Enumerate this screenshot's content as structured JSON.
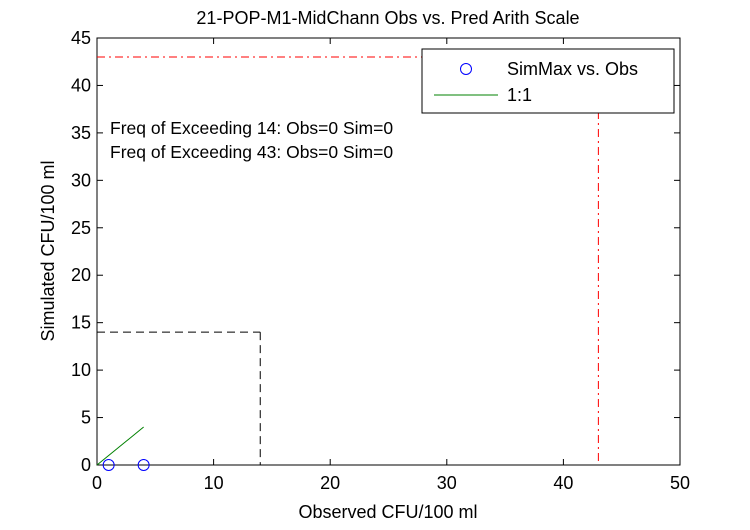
{
  "chart_data": {
    "type": "scatter",
    "title": "21-POP-M1-MidChann Obs vs. Pred Arith Scale",
    "xlabel": "Observed CFU/100 ml",
    "ylabel": "Simulated CFU/100 ml",
    "xlim": [
      0,
      50
    ],
    "ylim": [
      0,
      45
    ],
    "xticks": [
      0,
      10,
      20,
      30,
      40,
      50
    ],
    "yticks": [
      0,
      5,
      10,
      15,
      20,
      25,
      30,
      35,
      40,
      45
    ],
    "grid": false,
    "legend_position": "top-right",
    "series": [
      {
        "name": "SimMax vs. Obs",
        "kind": "marker",
        "marker": "circle",
        "color": "#0000ff",
        "x": [
          1,
          4
        ],
        "y": [
          0,
          0
        ]
      },
      {
        "name": "1:1",
        "kind": "line",
        "color": "#008000",
        "x": [
          0,
          4
        ],
        "y": [
          0,
          4
        ]
      }
    ],
    "threshold_lines": [
      {
        "value": 14,
        "color": "#000000",
        "style": "dashed"
      },
      {
        "value": 43,
        "color": "#ff0000",
        "style": "dashdot"
      }
    ],
    "annotations": [
      "Freq of Exceeding 14: Obs=0 Sim=0",
      "Freq of Exceeding 43: Obs=0 Sim=0"
    ]
  }
}
